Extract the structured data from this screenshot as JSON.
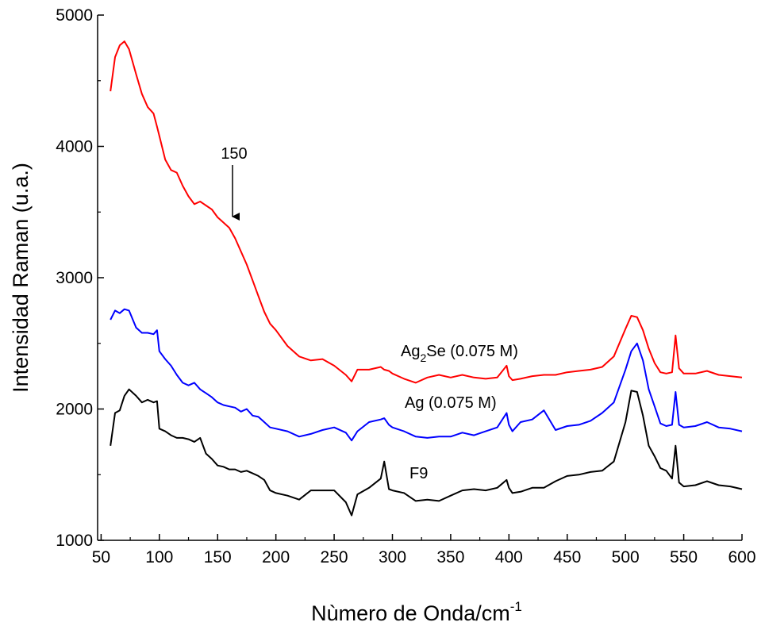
{
  "chart_data": {
    "type": "line",
    "xlabel": {
      "text": "Nùmero de Onda/cm",
      "sup": "-1"
    },
    "ylabel": "Intensidad Raman (u.a.)",
    "annotations": [
      {
        "text": "150"
      },
      {
        "text": "Ag",
        "sub": "2",
        "rest": "Se (0.075 M)"
      },
      {
        "text": "Ag (0.075 M)"
      },
      {
        "text": "F9"
      }
    ],
    "xlim": [
      47,
      600
    ],
    "ylim": [
      1000,
      5000
    ],
    "xticks": [
      50,
      100,
      150,
      200,
      250,
      300,
      350,
      400,
      450,
      500,
      550,
      600
    ],
    "yticks": [
      1000,
      2000,
      3000,
      4000,
      5000
    ],
    "x": [
      58,
      62,
      66,
      70,
      74,
      80,
      85,
      90,
      95,
      98,
      100,
      105,
      110,
      115,
      120,
      125,
      130,
      135,
      140,
      145,
      150,
      155,
      160,
      165,
      170,
      175,
      180,
      185,
      190,
      195,
      200,
      210,
      220,
      230,
      240,
      250,
      260,
      265,
      270,
      280,
      290,
      293,
      297,
      300,
      310,
      320,
      330,
      340,
      350,
      360,
      370,
      380,
      390,
      398,
      400,
      403,
      410,
      420,
      430,
      440,
      450,
      460,
      470,
      480,
      490,
      500,
      505,
      510,
      515,
      520,
      525,
      530,
      535,
      540,
      543,
      546,
      550,
      560,
      570,
      580,
      590,
      600
    ],
    "series": [
      {
        "name": "Ag2Se (0.075 M)",
        "color": "#ff0000",
        "values": [
          4420,
          4680,
          4770,
          4800,
          4740,
          4550,
          4400,
          4300,
          4250,
          4150,
          4080,
          3900,
          3820,
          3800,
          3700,
          3620,
          3560,
          3580,
          3550,
          3520,
          3460,
          3420,
          3380,
          3300,
          3200,
          3100,
          2980,
          2860,
          2740,
          2650,
          2600,
          2480,
          2400,
          2370,
          2380,
          2330,
          2260,
          2210,
          2300,
          2300,
          2320,
          2300,
          2290,
          2270,
          2230,
          2200,
          2240,
          2260,
          2240,
          2260,
          2240,
          2230,
          2240,
          2330,
          2250,
          2220,
          2230,
          2250,
          2260,
          2260,
          2280,
          2290,
          2300,
          2320,
          2400,
          2610,
          2710,
          2700,
          2600,
          2460,
          2350,
          2280,
          2270,
          2280,
          2560,
          2310,
          2270,
          2270,
          2290,
          2260,
          2250,
          2240
        ]
      },
      {
        "name": "Ag (0.075 M)",
        "color": "#0000ff",
        "values": [
          2680,
          2750,
          2730,
          2760,
          2750,
          2620,
          2580,
          2580,
          2570,
          2600,
          2440,
          2380,
          2330,
          2260,
          2200,
          2180,
          2200,
          2150,
          2120,
          2090,
          2050,
          2030,
          2020,
          2010,
          1980,
          2000,
          1950,
          1940,
          1900,
          1860,
          1850,
          1830,
          1790,
          1810,
          1840,
          1860,
          1820,
          1760,
          1830,
          1900,
          1920,
          1930,
          1880,
          1860,
          1830,
          1790,
          1780,
          1790,
          1790,
          1820,
          1800,
          1830,
          1860,
          1970,
          1880,
          1830,
          1900,
          1920,
          1990,
          1840,
          1870,
          1880,
          1910,
          1970,
          2050,
          2300,
          2440,
          2500,
          2370,
          2150,
          2020,
          1890,
          1870,
          1880,
          2130,
          1880,
          1860,
          1870,
          1900,
          1860,
          1850,
          1830
        ]
      },
      {
        "name": "F9",
        "color": "#000000",
        "values": [
          1720,
          1970,
          1990,
          2100,
          2150,
          2100,
          2050,
          2070,
          2050,
          2060,
          1850,
          1830,
          1800,
          1780,
          1780,
          1770,
          1750,
          1780,
          1660,
          1620,
          1570,
          1560,
          1540,
          1540,
          1520,
          1530,
          1510,
          1490,
          1460,
          1380,
          1360,
          1340,
          1310,
          1380,
          1380,
          1380,
          1290,
          1190,
          1350,
          1400,
          1470,
          1600,
          1390,
          1380,
          1360,
          1300,
          1310,
          1300,
          1340,
          1380,
          1390,
          1380,
          1400,
          1460,
          1400,
          1360,
          1370,
          1400,
          1400,
          1450,
          1490,
          1500,
          1520,
          1530,
          1600,
          1900,
          2140,
          2130,
          1950,
          1720,
          1640,
          1550,
          1530,
          1470,
          1720,
          1440,
          1410,
          1420,
          1450,
          1420,
          1410,
          1390
        ]
      }
    ]
  }
}
